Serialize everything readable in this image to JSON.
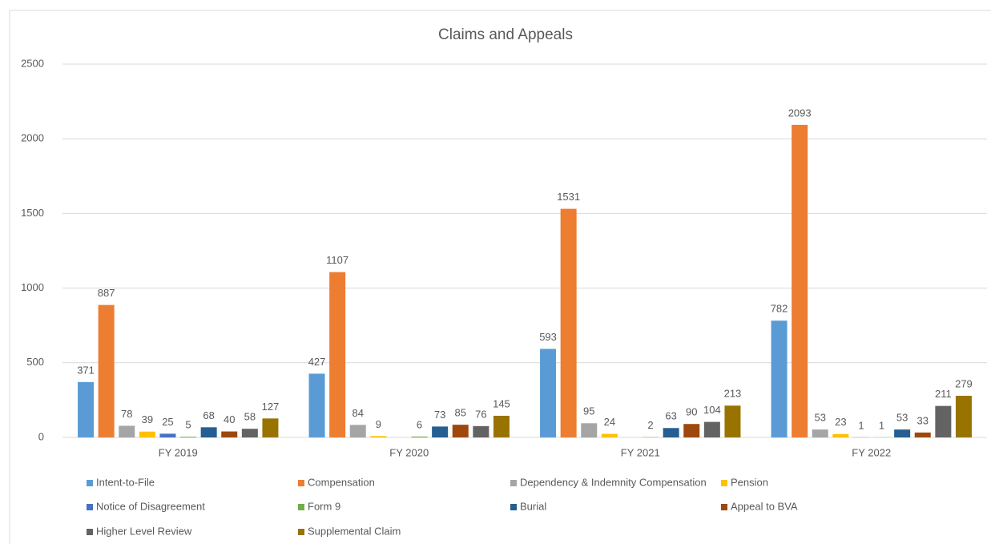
{
  "chart_data": {
    "type": "bar",
    "title": "Claims and Appeals",
    "categories": [
      "FY 2019",
      "FY 2020",
      "FY 2021",
      "FY 2022"
    ],
    "series": [
      {
        "name": "Intent-to-File",
        "color": "#5b9bd5",
        "values": [
          371,
          427,
          593,
          782
        ]
      },
      {
        "name": "Compensation",
        "color": "#ed7d31",
        "values": [
          887,
          1107,
          1531,
          2093
        ]
      },
      {
        "name": "Dependency & Indemnity Compensation",
        "color": "#a5a5a5",
        "values": [
          78,
          84,
          95,
          53
        ]
      },
      {
        "name": "Pension",
        "color": "#ffc000",
        "values": [
          39,
          9,
          24,
          23
        ]
      },
      {
        "name": "Notice of Disagreement",
        "color": "#4472c4",
        "values": [
          25,
          null,
          null,
          1
        ]
      },
      {
        "name": "Form 9",
        "color": "#70ad47",
        "values": [
          5,
          6,
          2,
          1
        ]
      },
      {
        "name": "Burial",
        "color": "#255e91",
        "values": [
          68,
          73,
          63,
          53
        ]
      },
      {
        "name": "Appeal to BVA",
        "color": "#9e480e",
        "values": [
          40,
          85,
          90,
          33
        ]
      },
      {
        "name": "Higher Level Review",
        "color": "#636363",
        "values": [
          58,
          76,
          104,
          211
        ]
      },
      {
        "name": "Supplemental Claim",
        "color": "#997300",
        "values": [
          127,
          145,
          213,
          279
        ]
      }
    ],
    "ylim": [
      0,
      2500
    ],
    "yticks": [
      0,
      500,
      1000,
      1500,
      2000,
      2500
    ],
    "grid": true,
    "legend": "bottom"
  }
}
